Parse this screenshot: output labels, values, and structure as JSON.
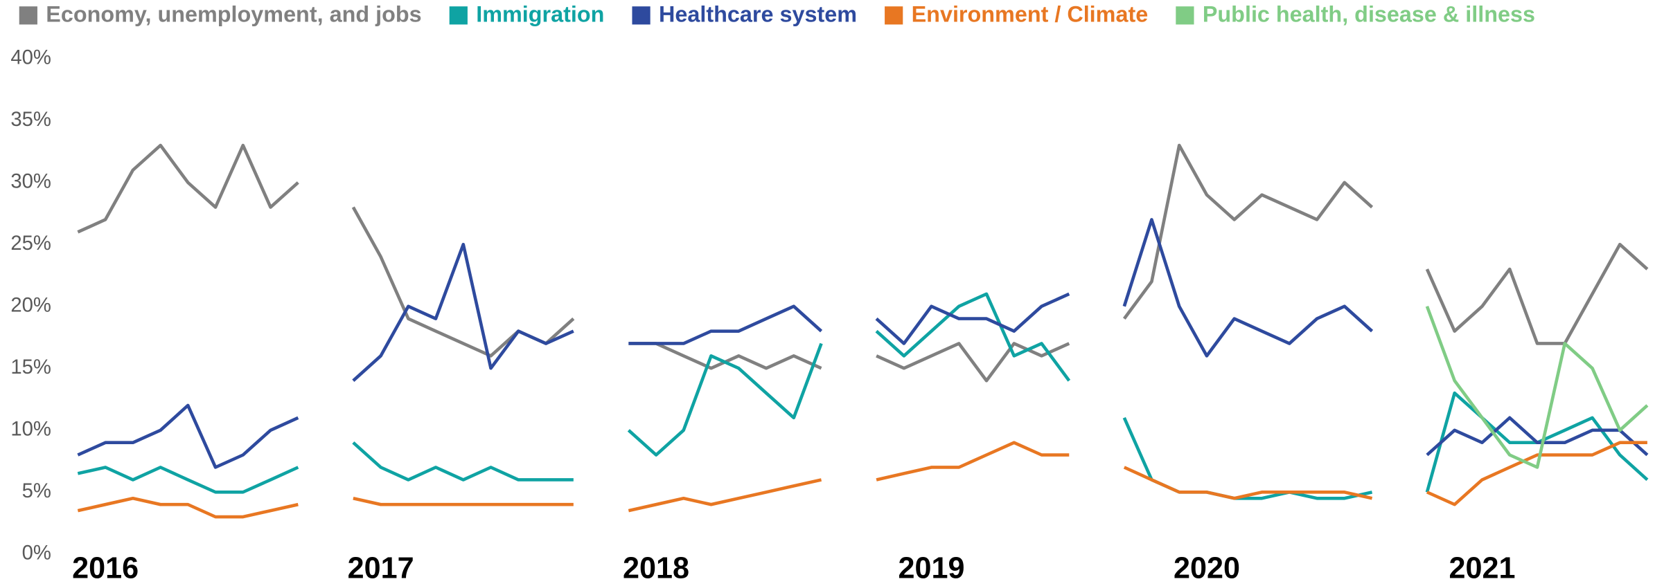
{
  "chart_data": {
    "type": "line",
    "x": [
      2016.4,
      2016.5,
      2016.6,
      2016.7,
      2016.8,
      2016.9,
      2017.0,
      2017.1,
      2017.2,
      2017.3,
      2017.4,
      2017.5,
      2017.6,
      2017.7,
      2017.8,
      2017.9,
      2018.0,
      2018.1,
      2018.2,
      2018.3,
      2018.4,
      2018.5,
      2018.6,
      2018.7,
      2018.8,
      2018.9,
      2019.0,
      2019.1,
      2019.2,
      2019.3,
      2019.4,
      2019.5,
      2019.6,
      2019.7,
      2019.8,
      2019.9,
      2020.0,
      2020.1,
      2020.2,
      2020.3,
      2020.4,
      2020.5,
      2020.6,
      2020.7,
      2020.8,
      2020.9,
      2021.0,
      2021.1,
      2021.2,
      2021.3,
      2021.4,
      2021.5,
      2021.6,
      2021.7,
      2021.8,
      2021.9,
      2022.0,
      2022.1
    ],
    "series": [
      {
        "name": "Economy, unemployment, and jobs",
        "color": "#808080",
        "values": [
          26,
          27,
          31,
          33,
          30,
          28,
          33,
          28,
          30,
          null,
          28,
          24,
          19,
          18,
          17,
          16,
          18,
          17,
          19,
          null,
          17,
          17,
          16,
          15,
          16,
          15,
          16,
          15,
          null,
          16,
          15,
          16,
          17,
          14,
          17,
          16,
          17,
          null,
          19,
          22,
          33,
          29,
          27,
          29,
          28,
          27,
          30,
          28,
          null,
          23,
          18,
          20,
          23,
          17,
          17,
          21,
          25,
          23
        ]
      },
      {
        "name": "Immigration",
        "color": "#0fa3a3",
        "values": [
          6.5,
          7,
          6,
          7,
          6,
          5,
          5,
          6,
          7,
          null,
          9,
          7,
          6,
          7,
          6,
          7,
          6,
          6,
          6,
          null,
          10,
          8,
          10,
          16,
          15,
          13,
          11,
          17,
          null,
          18,
          16,
          18,
          20,
          21,
          16,
          17,
          14,
          null,
          11,
          6,
          5,
          5,
          4.5,
          4.5,
          5,
          4.5,
          4.5,
          5,
          null,
          5,
          13,
          11,
          9,
          9,
          10,
          11,
          8,
          6
        ]
      },
      {
        "name": "Healthcare system",
        "color": "#2e4a9e",
        "values": [
          8,
          9,
          9,
          10,
          12,
          7,
          8,
          10,
          11,
          null,
          14,
          16,
          20,
          19,
          25,
          15,
          18,
          17,
          18,
          null,
          17,
          17,
          17,
          18,
          18,
          19,
          20,
          18,
          null,
          19,
          17,
          20,
          19,
          19,
          18,
          20,
          21,
          null,
          20,
          27,
          20,
          16,
          19,
          18,
          17,
          19,
          20,
          18,
          null,
          8,
          10,
          9,
          11,
          9,
          9,
          10,
          10,
          8
        ]
      },
      {
        "name": "Environment / Climate",
        "color": "#e87722",
        "values": [
          3.5,
          4,
          4.5,
          4,
          4,
          3,
          3,
          3.5,
          4,
          null,
          4.5,
          4,
          4,
          4,
          4,
          4,
          4,
          4,
          4,
          null,
          3.5,
          4,
          4.5,
          4,
          4.5,
          5,
          5.5,
          6,
          null,
          6,
          6.5,
          7,
          7,
          8,
          9,
          8,
          8,
          null,
          7,
          6,
          5,
          5,
          4.5,
          5,
          5,
          5,
          5,
          4.5,
          null,
          5,
          4,
          6,
          7,
          8,
          8,
          8,
          9,
          9
        ]
      },
      {
        "name": "Public health, disease & illness",
        "color": "#80cc85",
        "values": [
          null,
          null,
          null,
          null,
          null,
          null,
          null,
          null,
          null,
          null,
          null,
          null,
          null,
          null,
          null,
          null,
          null,
          null,
          null,
          null,
          null,
          null,
          null,
          null,
          null,
          null,
          null,
          null,
          null,
          null,
          null,
          null,
          null,
          null,
          null,
          null,
          null,
          null,
          null,
          null,
          null,
          null,
          null,
          null,
          null,
          null,
          null,
          null,
          null,
          20,
          14,
          11,
          8,
          7,
          17,
          15,
          10,
          12
        ]
      }
    ],
    "xlim": [
      2016.35,
      2022.12
    ],
    "xticks": [
      2016,
      2017,
      2018,
      2019,
      2020,
      2021
    ],
    "ylim": [
      0,
      40
    ],
    "yticks": [
      {
        "value": 0,
        "label": "0%"
      },
      {
        "value": 5,
        "label": "5%"
      },
      {
        "value": 10,
        "label": "10%"
      },
      {
        "value": 15,
        "label": "15%"
      },
      {
        "value": 20,
        "label": "20%"
      },
      {
        "value": 25,
        "label": "25%"
      },
      {
        "value": 30,
        "label": "30%"
      },
      {
        "value": 35,
        "label": "35%"
      },
      {
        "value": 40,
        "label": "40%"
      }
    ],
    "grid": false,
    "legend": "top"
  }
}
